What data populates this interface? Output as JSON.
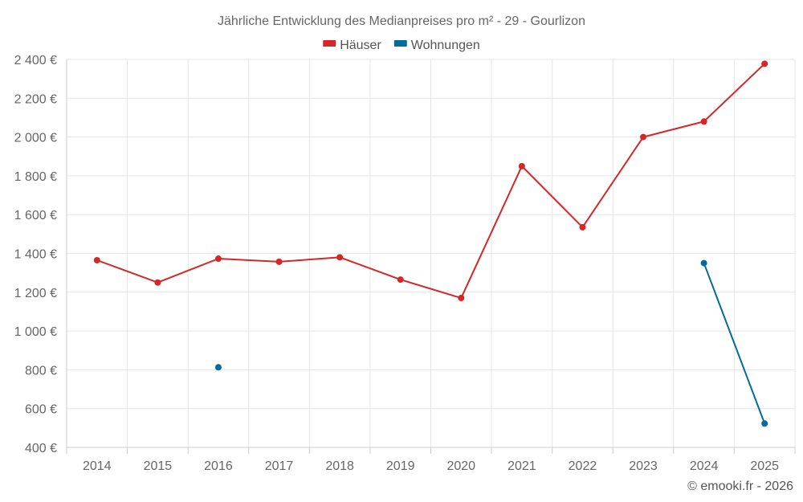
{
  "chart_data": {
    "type": "line",
    "title": "Jährliche Entwicklung des Medianpreises pro m² - 29 - Gourlizon",
    "xlabel": "",
    "ylabel": "",
    "categories": [
      "2014",
      "2015",
      "2016",
      "2017",
      "2018",
      "2019",
      "2020",
      "2021",
      "2022",
      "2023",
      "2024",
      "2025"
    ],
    "y_ticks": [
      400,
      600,
      800,
      1000,
      1200,
      1400,
      1600,
      1800,
      2000,
      2200,
      2400
    ],
    "y_tick_labels": [
      "400 €",
      "600 €",
      "800 €",
      "1 000 €",
      "1 200 €",
      "1 400 €",
      "1 600 €",
      "1 800 €",
      "2 000 €",
      "2 200 €",
      "2 400 €"
    ],
    "ylim": [
      400,
      2400
    ],
    "grid": true,
    "legend_position": "top-center",
    "series": [
      {
        "name": "Häuser",
        "color": "#d62728",
        "values": [
          1365,
          1250,
          1373,
          1357,
          1380,
          1265,
          1170,
          1850,
          1535,
          2000,
          2080,
          2378
        ]
      },
      {
        "name": "Wohnungen",
        "color": "#006ba1",
        "values": [
          null,
          null,
          813,
          null,
          null,
          null,
          null,
          null,
          null,
          null,
          1350,
          523
        ]
      }
    ]
  },
  "credit": "© emooki.fr - 2026"
}
